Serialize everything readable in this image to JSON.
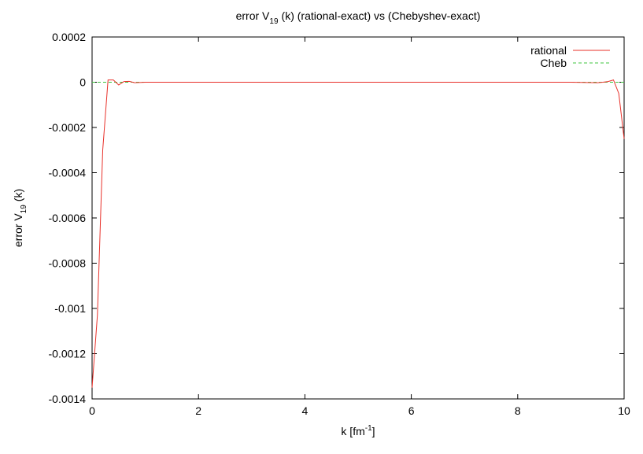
{
  "chart_data": {
    "type": "line",
    "title": [
      "error V",
      "19",
      "(k) (rational-exact) vs (Chebyshev-exact)"
    ],
    "x_label": [
      "k [fm",
      "-1",
      "]"
    ],
    "y_label": [
      "error V",
      "19",
      "(k)"
    ],
    "xlim": [
      0,
      10
    ],
    "xticks": [
      0,
      2,
      4,
      6,
      8,
      10
    ],
    "ylim": [
      -0.0014,
      0.0002
    ],
    "yticks": [
      0.0002,
      0,
      -0.0002,
      -0.0004,
      -0.0006,
      -0.0008,
      -0.001,
      -0.0012,
      -0.0014
    ],
    "legend": "top-right",
    "series": [
      {
        "name": "rational",
        "color": "#e8312a",
        "dash": false,
        "x": [
          0,
          0.1,
          0.2,
          0.3,
          0.4,
          0.5,
          0.6,
          0.7,
          0.8,
          1,
          2,
          3,
          4,
          5,
          6,
          7,
          8,
          9,
          9.5,
          9.6,
          9.7,
          9.8,
          9.9,
          10
        ],
        "values": [
          -0.00135,
          -0.00103,
          -0.0003,
          1e-05,
          1e-05,
          -1.2e-05,
          3e-06,
          4e-06,
          -2e-06,
          0,
          0,
          0,
          0,
          0,
          0,
          0,
          0,
          0,
          -2e-06,
          0,
          3e-06,
          1e-05,
          -5e-05,
          -0.00025
        ]
      },
      {
        "name": "Cheb",
        "color": "#3fc43f",
        "dash": true,
        "x": [
          0,
          10
        ],
        "values": [
          0,
          0
        ]
      }
    ]
  }
}
